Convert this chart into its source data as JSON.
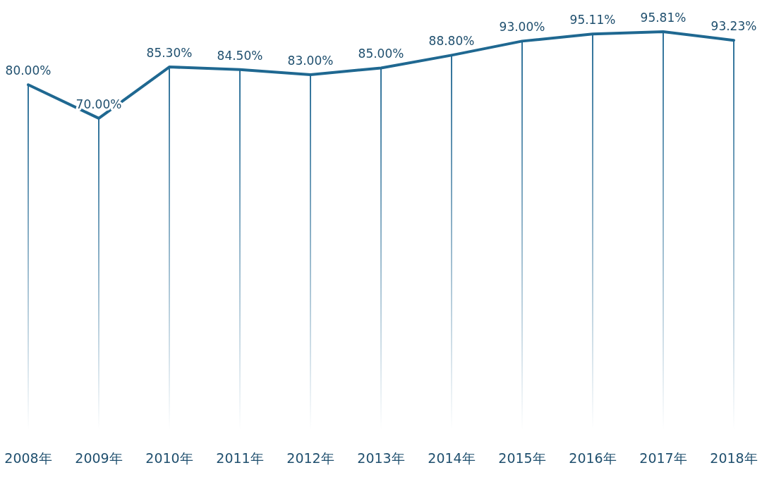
{
  "chart_data": {
    "type": "line",
    "categories": [
      "2008年",
      "2009年",
      "2010年",
      "2011年",
      "2012年",
      "2013年",
      "2014年",
      "2015年",
      "2016年",
      "2017年",
      "2018年"
    ],
    "series": [
      {
        "color": "#1f6891",
        "values": [
          80.0,
          70.0,
          85.3,
          84.5,
          83.0,
          85.0,
          88.8,
          93.0,
          95.11,
          95.81,
          93.23
        ],
        "value_labels": [
          "80.00%",
          "70.00%",
          "85.30%",
          "84.50%",
          "83.00%",
          "85.00%",
          "88.80%",
          "93.00%",
          "95.11%",
          "95.81%",
          "93.23%"
        ]
      }
    ],
    "marker": "none",
    "grid": "x",
    "tick_labels": "x"
  }
}
